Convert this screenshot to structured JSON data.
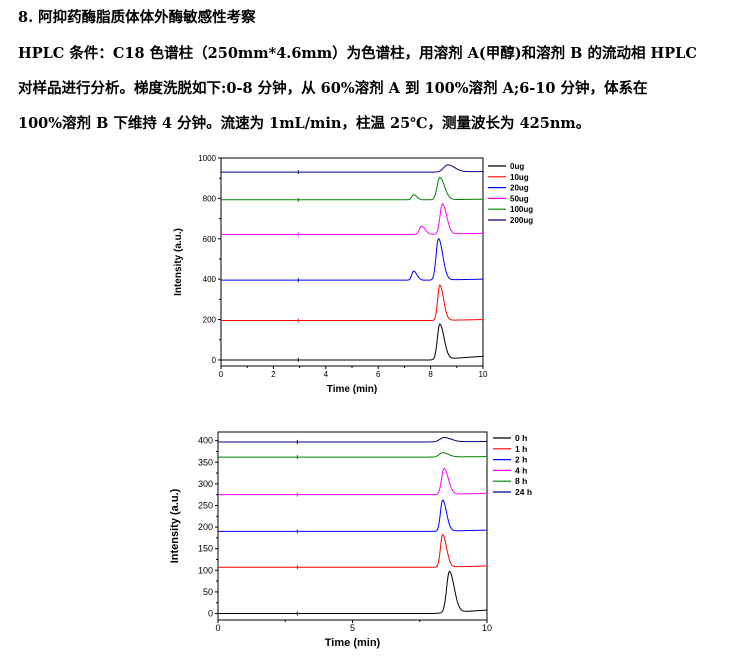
{
  "document": {
    "heading": "8.  阿抑药酶脂质体体外酶敏感性考察",
    "lines": [
      "HPLC 条件：C18 色谱柱（250mm*4.6mm）为色谱柱，用溶剂 A(甲醇)和溶剂 B 的流动相 HPLC",
      "对样品进行分析。梯度洗脱如下:0-8 分钟，从 60%溶剂 A 到 100%溶剂 A;6-10 分钟，体系在",
      "100%溶剂 B 下维持 4 分钟。流速为 1mL/min，柱温 25℃，测量波长为  425nm。"
    ]
  },
  "chart_data": [
    {
      "type": "line",
      "xlabel": "Time (min)",
      "ylabel": "Intensity (a.u.)",
      "xlim": [
        0,
        10
      ],
      "ylim": [
        -30,
        1000
      ],
      "xticks": [
        0,
        2,
        4,
        6,
        8,
        10
      ],
      "yticks": [
        0,
        200,
        400,
        600,
        800,
        1000
      ],
      "legend_position": "top-right",
      "series": [
        {
          "name": "0ug",
          "color": "#000000",
          "baseline": 0,
          "peaks": [
            {
              "x": 8.35,
              "h": 175,
              "w": 0.09
            }
          ],
          "drift": 18
        },
        {
          "name": "10ug",
          "color": "#ff0000",
          "baseline": 195,
          "peaks": [
            {
              "x": 8.35,
              "h": 175,
              "w": 0.08
            }
          ],
          "drift": 5
        },
        {
          "name": "20ug",
          "color": "#0000ff",
          "baseline": 395,
          "peaks": [
            {
              "x": 7.35,
              "h": 45,
              "w": 0.07
            },
            {
              "x": 8.3,
              "h": 205,
              "w": 0.09
            }
          ],
          "drift": 5
        },
        {
          "name": "50ug",
          "color": "#ff00ff",
          "baseline": 622,
          "peaks": [
            {
              "x": 7.65,
              "h": 40,
              "w": 0.08
            },
            {
              "x": 8.45,
              "h": 150,
              "w": 0.09
            }
          ],
          "drift": 5
        },
        {
          "name": "100ug",
          "color": "#008000",
          "baseline": 793,
          "peaks": [
            {
              "x": 7.35,
              "h": 25,
              "w": 0.07
            },
            {
              "x": 8.35,
              "h": 110,
              "w": 0.1
            }
          ],
          "drift": 3
        },
        {
          "name": "200ug",
          "color": "#000080",
          "baseline": 930,
          "peaks": [
            {
              "x": 8.65,
              "h": 35,
              "w": 0.15
            }
          ],
          "drift": 3
        }
      ]
    },
    {
      "type": "line",
      "xlabel": "Time (min)",
      "ylabel": "Intensity (a.u.)",
      "xlim": [
        0,
        10
      ],
      "ylim": [
        -15,
        420
      ],
      "xticks": [
        0,
        5,
        10
      ],
      "yticks": [
        0,
        50,
        100,
        150,
        200,
        250,
        300,
        350,
        400
      ],
      "legend_position": "top-right",
      "series": [
        {
          "name": "0 h",
          "color": "#000000",
          "baseline": 0,
          "peaks": [
            {
              "x": 8.6,
              "h": 95,
              "w": 0.1
            }
          ],
          "drift": 8
        },
        {
          "name": "1 h",
          "color": "#ff0000",
          "baseline": 107,
          "peaks": [
            {
              "x": 8.35,
              "h": 75,
              "w": 0.08
            }
          ],
          "drift": 3
        },
        {
          "name": "2 h",
          "color": "#0000ff",
          "baseline": 190,
          "peaks": [
            {
              "x": 8.35,
              "h": 72,
              "w": 0.08
            }
          ],
          "drift": 3
        },
        {
          "name": "4 h",
          "color": "#ff00ff",
          "baseline": 275,
          "peaks": [
            {
              "x": 8.4,
              "h": 60,
              "w": 0.09
            }
          ],
          "drift": 3
        },
        {
          "name": "8 h",
          "color": "#008000",
          "baseline": 362,
          "peaks": [
            {
              "x": 8.35,
              "h": 10,
              "w": 0.12
            }
          ],
          "drift": 1
        },
        {
          "name": "24 h",
          "color": "#000080",
          "baseline": 397,
          "peaks": [
            {
              "x": 8.4,
              "h": 10,
              "w": 0.15
            }
          ],
          "drift": 1
        }
      ]
    }
  ]
}
